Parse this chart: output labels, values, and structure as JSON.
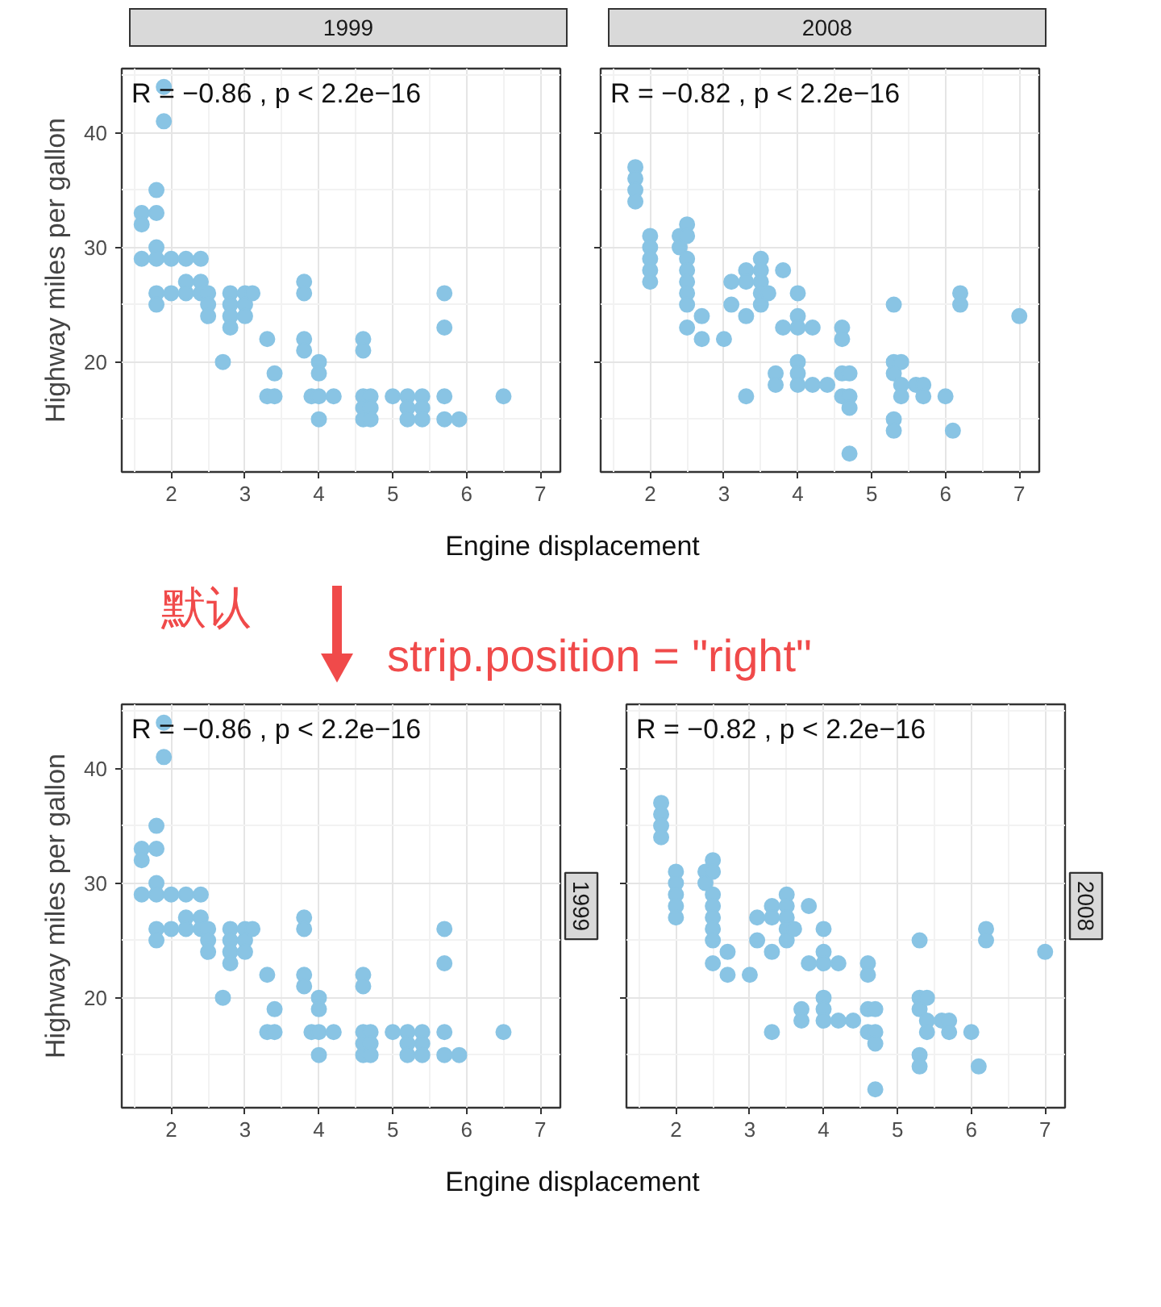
{
  "chart_data": [
    {
      "type": "scatter",
      "title": "1999",
      "xlabel": "Engine displacement",
      "ylabel": "Highway miles per gallon",
      "marker": "circle",
      "grid": true,
      "tick_labels": "xy",
      "xlim": [
        1.33,
        7.27
      ],
      "ylim": [
        10.4,
        45.6
      ],
      "xticks": [
        2,
        3,
        4,
        5,
        6,
        7
      ],
      "yticks": [
        20,
        30,
        40
      ],
      "annotations": [
        "R = −0.86 , p < 2.2e−16",
        "默认"
      ],
      "series": [
        {
          "color": "#89c4e4",
          "x": [
            1.6,
            1.6,
            1.6,
            1.8,
            1.8,
            1.8,
            1.8,
            1.8,
            1.8,
            1.9,
            1.9,
            2.0,
            2.0,
            2.2,
            2.2,
            2.2,
            2.4,
            2.4,
            2.4,
            2.5,
            2.5,
            2.5,
            2.7,
            2.8,
            2.8,
            2.8,
            2.8,
            3.0,
            3.0,
            3.0,
            3.1,
            3.3,
            3.3,
            3.4,
            3.4,
            3.8,
            3.8,
            3.8,
            3.8,
            3.9,
            4.0,
            4.0,
            4.0,
            4.0,
            4.2,
            4.6,
            4.6,
            4.6,
            4.6,
            4.6,
            4.7,
            4.7,
            4.7,
            5.0,
            5.2,
            5.2,
            5.2,
            5.4,
            5.4,
            5.4,
            5.7,
            5.7,
            5.7,
            5.7,
            5.9,
            6.5
          ],
          "values": [
            33,
            32,
            29,
            35,
            33,
            30,
            29,
            26,
            25,
            44,
            41,
            29,
            26,
            29,
            27,
            26,
            29,
            27,
            26,
            26,
            25,
            24,
            20,
            26,
            25,
            24,
            23,
            26,
            25,
            24,
            26,
            22,
            17,
            19,
            17,
            27,
            26,
            22,
            21,
            17,
            20,
            19,
            17,
            15,
            17,
            22,
            21,
            17,
            16,
            15,
            17,
            16,
            15,
            17,
            17,
            16,
            15,
            17,
            16,
            15,
            26,
            23,
            17,
            15,
            15,
            17
          ]
        }
      ]
    },
    {
      "type": "scatter",
      "title": "2008",
      "marker": "circle",
      "grid": true,
      "tick_labels": "x",
      "xlim": [
        1.33,
        7.27
      ],
      "ylim": [
        10.4,
        45.6
      ],
      "xticks": [
        2,
        3,
        4,
        5,
        6,
        7
      ],
      "yticks": [
        20,
        30,
        40
      ],
      "annotations": [
        "R = −0.82 , p < 2.2e−16"
      ],
      "series": [
        {
          "color": "#89c4e4",
          "x": [
            1.8,
            1.8,
            1.8,
            1.8,
            2.0,
            2.0,
            2.0,
            2.0,
            2.0,
            2.4,
            2.4,
            2.5,
            2.5,
            2.5,
            2.5,
            2.5,
            2.5,
            2.5,
            2.5,
            2.7,
            2.7,
            3.0,
            3.1,
            3.1,
            3.3,
            3.3,
            3.3,
            3.3,
            3.5,
            3.5,
            3.5,
            3.5,
            3.5,
            3.6,
            3.8,
            3.8,
            3.7,
            3.7,
            4.0,
            4.0,
            4.0,
            4.0,
            4.0,
            4.0,
            4.2,
            4.2,
            4.4,
            4.6,
            4.6,
            4.6,
            4.6,
            4.7,
            4.7,
            4.7,
            4.7,
            5.3,
            5.3,
            5.3,
            5.3,
            5.3,
            5.4,
            5.4,
            5.4,
            5.6,
            5.7,
            5.7,
            6.0,
            6.1,
            6.2,
            6.2,
            7.0
          ],
          "values": [
            37,
            36,
            35,
            34,
            31,
            30,
            29,
            28,
            27,
            31,
            30,
            32,
            31,
            29,
            28,
            27,
            26,
            25,
            23,
            24,
            22,
            22,
            27,
            25,
            28,
            27,
            24,
            17,
            29,
            28,
            27,
            26,
            25,
            26,
            28,
            23,
            19,
            18,
            26,
            24,
            23,
            20,
            19,
            18,
            23,
            18,
            18,
            23,
            22,
            19,
            17,
            19,
            17,
            16,
            12,
            25,
            20,
            19,
            15,
            14,
            20,
            18,
            17,
            18,
            18,
            17,
            17,
            14,
            26,
            25,
            24
          ]
        }
      ]
    },
    {
      "type": "scatter",
      "y2label": "1999",
      "xlabel": "Engine displacement",
      "ylabel": "Highway miles per gallon",
      "marker": "circle",
      "grid": true,
      "tick_labels": "xy",
      "xlim": [
        1.33,
        7.27
      ],
      "ylim": [
        10.4,
        45.6
      ],
      "xticks": [
        2,
        3,
        4,
        5,
        6,
        7
      ],
      "yticks": [
        20,
        30,
        40
      ],
      "annotations": [
        "R = −0.86 , p < 2.2e−16",
        "strip.position = \"right\""
      ],
      "series": [
        {
          "color": "#89c4e4",
          "x": [
            1.6,
            1.6,
            1.6,
            1.8,
            1.8,
            1.8,
            1.8,
            1.8,
            1.8,
            1.9,
            1.9,
            2.0,
            2.0,
            2.2,
            2.2,
            2.2,
            2.4,
            2.4,
            2.4,
            2.5,
            2.5,
            2.5,
            2.7,
            2.8,
            2.8,
            2.8,
            2.8,
            3.0,
            3.0,
            3.0,
            3.1,
            3.3,
            3.3,
            3.4,
            3.4,
            3.8,
            3.8,
            3.8,
            3.8,
            3.9,
            4.0,
            4.0,
            4.0,
            4.0,
            4.2,
            4.6,
            4.6,
            4.6,
            4.6,
            4.6,
            4.7,
            4.7,
            4.7,
            5.0,
            5.2,
            5.2,
            5.2,
            5.4,
            5.4,
            5.4,
            5.7,
            5.7,
            5.7,
            5.7,
            5.9,
            6.5
          ],
          "values": [
            33,
            32,
            29,
            35,
            33,
            30,
            29,
            26,
            25,
            44,
            41,
            29,
            26,
            29,
            27,
            26,
            29,
            27,
            26,
            26,
            25,
            24,
            20,
            26,
            25,
            24,
            23,
            26,
            25,
            24,
            26,
            22,
            17,
            19,
            17,
            27,
            26,
            22,
            21,
            17,
            20,
            19,
            17,
            15,
            17,
            22,
            21,
            17,
            16,
            15,
            17,
            16,
            15,
            17,
            17,
            16,
            15,
            17,
            16,
            15,
            26,
            23,
            17,
            15,
            15,
            17
          ]
        }
      ]
    },
    {
      "type": "scatter",
      "y2label": "2008",
      "marker": "circle",
      "grid": true,
      "tick_labels": "x",
      "xlim": [
        1.33,
        7.27
      ],
      "ylim": [
        10.4,
        45.6
      ],
      "xticks": [
        2,
        3,
        4,
        5,
        6,
        7
      ],
      "yticks": [
        20,
        30,
        40
      ],
      "annotations": [
        "R = −0.82 , p < 2.2e−16"
      ],
      "series": [
        {
          "color": "#89c4e4",
          "x": [
            1.8,
            1.8,
            1.8,
            1.8,
            2.0,
            2.0,
            2.0,
            2.0,
            2.0,
            2.4,
            2.4,
            2.5,
            2.5,
            2.5,
            2.5,
            2.5,
            2.5,
            2.5,
            2.5,
            2.7,
            2.7,
            3.0,
            3.1,
            3.1,
            3.3,
            3.3,
            3.3,
            3.3,
            3.5,
            3.5,
            3.5,
            3.5,
            3.5,
            3.6,
            3.8,
            3.8,
            3.7,
            3.7,
            4.0,
            4.0,
            4.0,
            4.0,
            4.0,
            4.0,
            4.2,
            4.2,
            4.4,
            4.6,
            4.6,
            4.6,
            4.6,
            4.7,
            4.7,
            4.7,
            4.7,
            5.3,
            5.3,
            5.3,
            5.3,
            5.3,
            5.4,
            5.4,
            5.4,
            5.6,
            5.7,
            5.7,
            6.0,
            6.1,
            6.2,
            6.2,
            7.0
          ],
          "values": [
            37,
            36,
            35,
            34,
            31,
            30,
            29,
            28,
            27,
            31,
            30,
            32,
            31,
            29,
            28,
            27,
            26,
            25,
            23,
            24,
            22,
            22,
            27,
            25,
            28,
            27,
            24,
            17,
            29,
            28,
            27,
            26,
            25,
            26,
            28,
            23,
            19,
            18,
            26,
            24,
            23,
            20,
            19,
            18,
            23,
            18,
            18,
            23,
            22,
            19,
            17,
            19,
            17,
            16,
            12,
            25,
            20,
            19,
            15,
            14,
            20,
            18,
            17,
            18,
            18,
            17,
            17,
            14,
            26,
            25,
            24
          ]
        }
      ]
    }
  ]
}
